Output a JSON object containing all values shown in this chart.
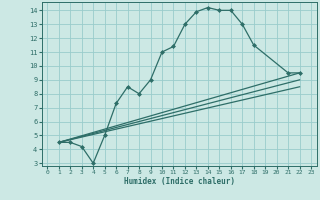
{
  "xlabel": "Humidex (Indice chaleur)",
  "background_color": "#cce8e4",
  "grid_color": "#99cccc",
  "line_color": "#2e6e68",
  "xlim": [
    -0.5,
    23.5
  ],
  "ylim": [
    2.8,
    14.6
  ],
  "xticks": [
    0,
    1,
    2,
    3,
    4,
    5,
    6,
    7,
    8,
    9,
    10,
    11,
    12,
    13,
    14,
    15,
    16,
    17,
    18,
    19,
    20,
    21,
    22,
    23
  ],
  "yticks": [
    3,
    4,
    5,
    6,
    7,
    8,
    9,
    10,
    11,
    12,
    13,
    14
  ],
  "series": [
    {
      "x": [
        1,
        2,
        3,
        4,
        5,
        6,
        7,
        8,
        9,
        10,
        11,
        12,
        13,
        14,
        15,
        16,
        17,
        18,
        21,
        22
      ],
      "y": [
        4.5,
        4.5,
        4.2,
        3.0,
        5.0,
        7.3,
        8.5,
        8.0,
        9.0,
        11.0,
        11.4,
        13.0,
        13.9,
        14.2,
        14.0,
        14.0,
        13.0,
        11.5,
        9.5,
        9.5
      ],
      "marker": "D",
      "markersize": 2.5
    },
    {
      "x": [
        1,
        22
      ],
      "y": [
        4.5,
        9.5
      ],
      "marker": false
    },
    {
      "x": [
        1,
        22
      ],
      "y": [
        4.5,
        9.0
      ],
      "marker": false
    },
    {
      "x": [
        1,
        22
      ],
      "y": [
        4.5,
        8.5
      ],
      "marker": false
    }
  ]
}
